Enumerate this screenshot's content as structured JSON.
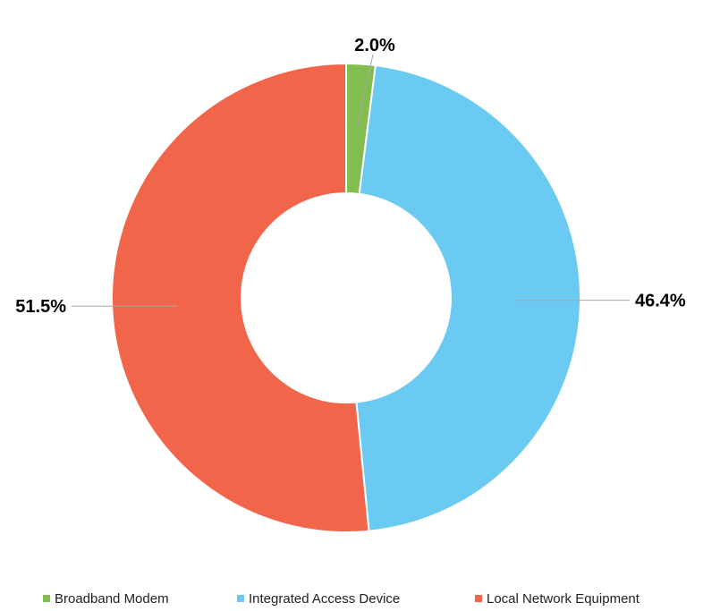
{
  "chart_data": {
    "type": "pie",
    "variant": "donut",
    "categories": [
      "Broadband Modem",
      "Integrated Access Device",
      "Local Network Equipment"
    ],
    "values": [
      2.0,
      46.4,
      51.5
    ],
    "labels": [
      "2.0%",
      "46.4%",
      "51.5%"
    ],
    "colors": [
      "#82bd4f",
      "#6acaf1",
      "#f1664b"
    ],
    "title": "",
    "legend_position": "bottom"
  }
}
